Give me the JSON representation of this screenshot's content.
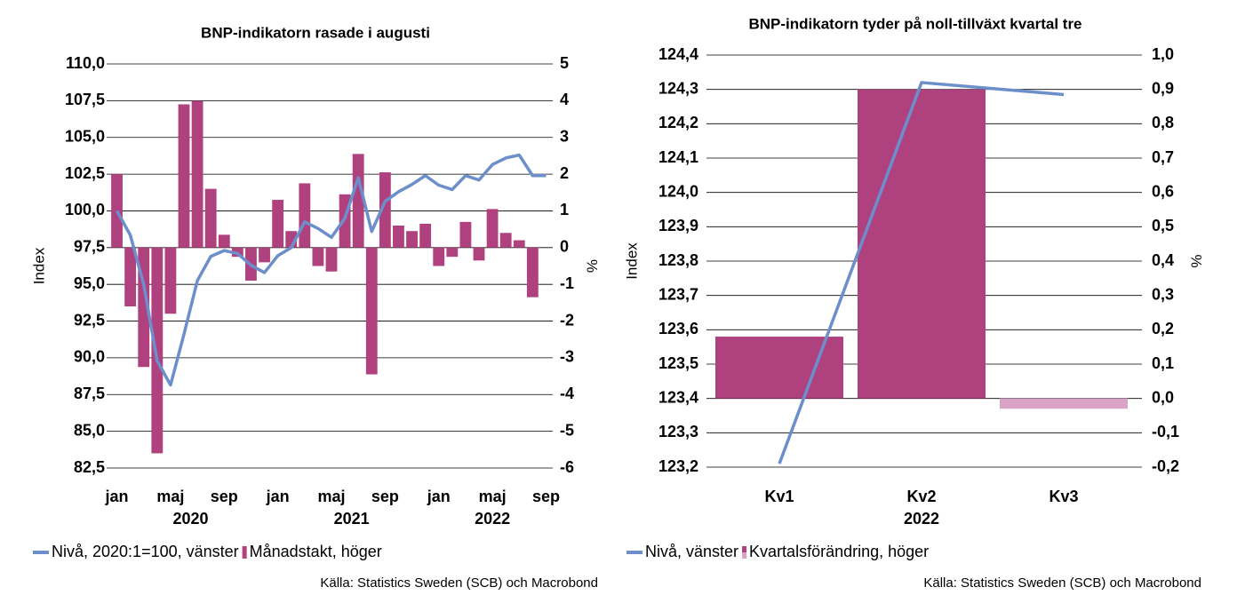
{
  "chart_data": [
    {
      "type": "bar_line",
      "title": "BNP-indikatorn rasade i augusti",
      "ylabel": "Index",
      "y2label": "%",
      "categories": [
        "jan",
        null,
        null,
        null,
        "maj",
        null,
        null,
        null,
        "sep",
        null,
        null,
        null,
        "jan",
        null,
        null,
        null,
        "maj",
        null,
        null,
        null,
        "sep",
        null,
        null,
        null,
        "jan",
        null,
        null,
        null,
        "maj",
        null,
        null,
        null,
        "sep"
      ],
      "group_labels": [
        "2020",
        "2021",
        "2022"
      ],
      "ylim": [
        82.5,
        110
      ],
      "yticks": [
        {
          "value": 82.5,
          "label": "82,5"
        },
        {
          "value": 85,
          "label": "85,0"
        },
        {
          "value": 87.5,
          "label": "87,5"
        },
        {
          "value": 90,
          "label": "90,0"
        },
        {
          "value": 92.5,
          "label": "92,5"
        },
        {
          "value": 95,
          "label": "95,0"
        },
        {
          "value": 97.5,
          "label": "97,5"
        },
        {
          "value": 100,
          "label": "100,0"
        },
        {
          "value": 102.5,
          "label": "102,5"
        },
        {
          "value": 105,
          "label": "105,0"
        },
        {
          "value": 107.5,
          "label": "107,5"
        },
        {
          "value": 110,
          "label": "110,0"
        }
      ],
      "y2lim": [
        -6,
        5
      ],
      "y2ticks": [
        -6,
        -5,
        -4,
        -3,
        -2,
        -1,
        0,
        1,
        2,
        3,
        4,
        5
      ],
      "series": [
        {
          "name": "Nivå, 2020:1=100, vänster",
          "type": "line",
          "axis": "y",
          "color": "#6c8fcb",
          "values": [
            100.0,
            98.35,
            95.0,
            89.8,
            88.15,
            91.6,
            95.25,
            96.9,
            97.3,
            97.1,
            96.3,
            95.8,
            96.95,
            97.5,
            99.25,
            98.8,
            98.2,
            99.5,
            102.25,
            98.6,
            100.65,
            101.3,
            101.8,
            102.4,
            101.75,
            101.45,
            102.4,
            102.1,
            103.15,
            103.6,
            103.8,
            102.4,
            102.4
          ]
        },
        {
          "name": "Månadstakt, höger",
          "type": "bar",
          "axis": "y2",
          "color": "#b0417f",
          "values": [
            2.0,
            -1.6,
            -3.25,
            -5.6,
            -1.8,
            3.9,
            4.0,
            1.6,
            0.35,
            -0.25,
            -0.9,
            -0.4,
            1.3,
            0.45,
            1.75,
            -0.5,
            -0.65,
            1.45,
            2.55,
            -3.45,
            2.05,
            0.6,
            0.45,
            0.65,
            -0.5,
            -0.25,
            0.7,
            -0.35,
            1.05,
            0.4,
            0.2,
            -1.35,
            null
          ]
        }
      ],
      "source": "Källa: Statistics Sweden (SCB) och Macrobond"
    },
    {
      "type": "bar_line",
      "title": "BNP-indikatorn tyder på noll-tillväxt kvartal tre",
      "ylabel": "Index",
      "y2label": "%",
      "categories": [
        "Kv1",
        "Kv2",
        "Kv3"
      ],
      "group_labels": [
        "2022"
      ],
      "ylim": [
        123.2,
        124.4
      ],
      "yticks": [
        {
          "value": 123.2,
          "label": "123,2"
        },
        {
          "value": 123.3,
          "label": "123,3"
        },
        {
          "value": 123.4,
          "label": "123,4"
        },
        {
          "value": 123.5,
          "label": "123,5"
        },
        {
          "value": 123.6,
          "label": "123,6"
        },
        {
          "value": 123.7,
          "label": "123,7"
        },
        {
          "value": 123.8,
          "label": "123,8"
        },
        {
          "value": 123.9,
          "label": "123,9"
        },
        {
          "value": 124.0,
          "label": "124,0"
        },
        {
          "value": 124.1,
          "label": "124,1"
        },
        {
          "value": 124.2,
          "label": "124,2"
        },
        {
          "value": 124.3,
          "label": "124,3"
        },
        {
          "value": 124.4,
          "label": "124,4"
        }
      ],
      "y2lim": [
        -0.2,
        1.0
      ],
      "y2ticks": [
        {
          "value": -0.2,
          "label": "-0,2"
        },
        {
          "value": -0.1,
          "label": "-0,1"
        },
        {
          "value": 0,
          "label": "0,0"
        },
        {
          "value": 0.1,
          "label": "0,1"
        },
        {
          "value": 0.2,
          "label": "0,2"
        },
        {
          "value": 0.3,
          "label": "0,3"
        },
        {
          "value": 0.4,
          "label": "0,4"
        },
        {
          "value": 0.5,
          "label": "0,5"
        },
        {
          "value": 0.6,
          "label": "0,6"
        },
        {
          "value": 0.7,
          "label": "0,7"
        },
        {
          "value": 0.8,
          "label": "0,8"
        },
        {
          "value": 0.9,
          "label": "0,9"
        },
        {
          "value": 1.0,
          "label": "1,0"
        }
      ],
      "series": [
        {
          "name": "Nivå, vänster",
          "type": "line",
          "axis": "y",
          "color": "#6c8fcb",
          "values": [
            123.21,
            124.32,
            124.285
          ]
        },
        {
          "name": "Kvartalsförändring, höger",
          "type": "bar",
          "axis": "y2",
          "color": "#b0417f",
          "colors": [
            "#b0417f",
            "#b0417f",
            "#d9a3c5"
          ],
          "values": [
            0.18,
            0.9,
            -0.03
          ]
        }
      ],
      "source": "Källa: Statistics Sweden (SCB) och Macrobond"
    }
  ]
}
